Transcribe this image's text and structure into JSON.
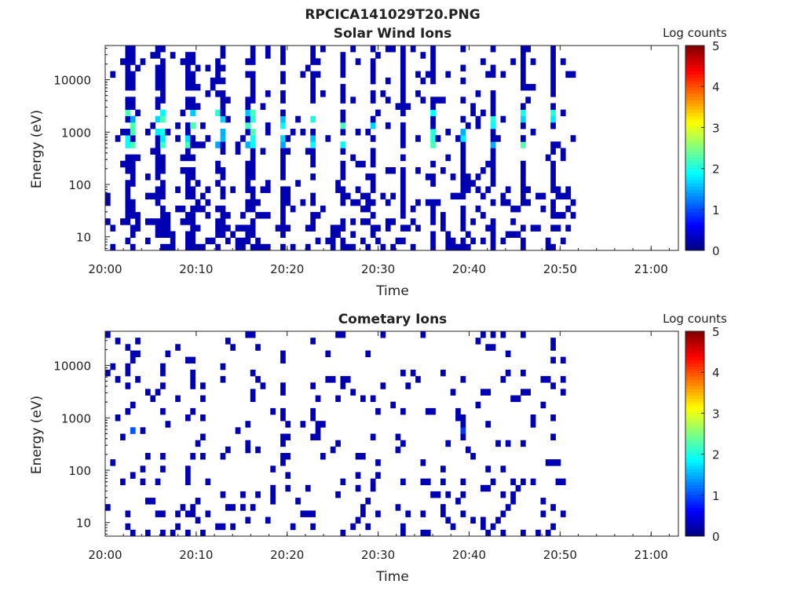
{
  "figure_title": "RPCICA141029T20.PNG",
  "colors": {
    "background": "#ffffff",
    "axis": "#222222",
    "empty_bin": "#ffffff"
  },
  "chart_data": [
    {
      "type": "heatmap",
      "title": "Solar Wind Ions",
      "xlabel": "Time",
      "ylabel": "Energy (eV)",
      "x_ticks": [
        "20:00",
        "20:10",
        "20:20",
        "20:30",
        "20:40",
        "20:50",
        "21:00"
      ],
      "x_range": [
        "20:00",
        "21:03"
      ],
      "y_scale": "log",
      "y_ticks": [
        10,
        100,
        1000,
        10000
      ],
      "y_range": [
        5.5,
        45000
      ],
      "colorbar": {
        "label": "Log counts",
        "range": [
          0,
          5
        ],
        "ticks": [
          0,
          1,
          2,
          3,
          4,
          5
        ],
        "colormap": "jet"
      },
      "data_extent_x": [
        "20:00",
        "20:51"
      ],
      "profile": "solar_wind",
      "seed": 7
    },
    {
      "type": "heatmap",
      "title": "Cometary Ions",
      "xlabel": "Time",
      "ylabel": "Energy (eV)",
      "x_ticks": [
        "20:00",
        "20:10",
        "20:20",
        "20:30",
        "20:40",
        "20:50",
        "21:00"
      ],
      "x_range": [
        "20:00",
        "21:03"
      ],
      "y_scale": "log",
      "y_ticks": [
        10,
        100,
        1000,
        10000
      ],
      "y_range": [
        5.5,
        45000
      ],
      "colorbar": {
        "label": "Log counts",
        "range": [
          0,
          5
        ],
        "ticks": [
          0,
          1,
          2,
          3,
          4,
          5
        ],
        "colormap": "jet"
      },
      "data_extent_x": [
        "20:00",
        "20:51"
      ],
      "profile": "cometary",
      "seed": 13
    }
  ]
}
